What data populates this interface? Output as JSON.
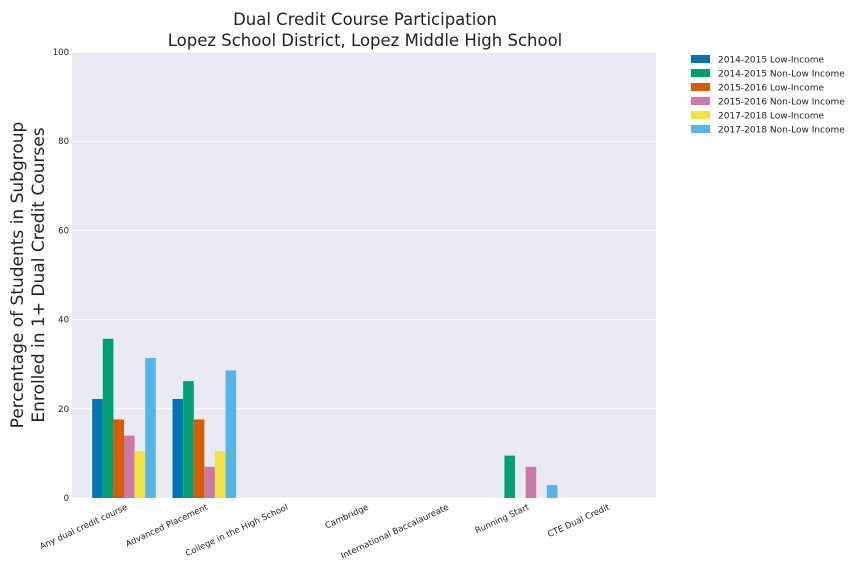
{
  "chart_data": {
    "type": "bar",
    "title": "Dual Credit Course Participation",
    "subtitle": "Lopez School District, Lopez Middle High School",
    "ylabel_lines": [
      "Percentage of Students in Subgroup",
      "Enrolled in 1+ Dual Credit Courses"
    ],
    "xlabel": "",
    "ylim": [
      0,
      100
    ],
    "yticks": [
      0,
      20,
      40,
      60,
      80,
      100
    ],
    "grid": true,
    "legend_position": "outside-top-right",
    "categories": [
      "Any dual credit course",
      "Advanced Placement",
      "College in the High School",
      "Cambridge",
      "International Baccalaureate",
      "Running Start",
      "CTE Dual Credit"
    ],
    "series": [
      {
        "name": "2014-2015 Low-Income",
        "color": "#0072b2",
        "values": [
          22.2,
          22.2,
          0,
          0,
          0,
          0,
          0
        ]
      },
      {
        "name": "2014-2015 Non-Low Income",
        "color": "#009e73",
        "values": [
          35.7,
          26.2,
          0,
          0,
          0,
          9.5,
          0
        ]
      },
      {
        "name": "2015-2016 Low-Income",
        "color": "#d55e00",
        "values": [
          17.6,
          17.6,
          0,
          0,
          0,
          0,
          0
        ]
      },
      {
        "name": "2015-2016 Non-Low Income",
        "color": "#cc79a7",
        "values": [
          14.0,
          7.0,
          0,
          0,
          0,
          7.0,
          0
        ]
      },
      {
        "name": "2017-2018 Low-Income",
        "color": "#f0e442",
        "values": [
          10.5,
          10.5,
          0,
          0,
          0,
          0,
          0
        ]
      },
      {
        "name": "2017-2018 Non-Low Income",
        "color": "#56b4e9",
        "values": [
          31.4,
          28.6,
          0,
          0,
          0,
          2.9,
          0
        ]
      }
    ],
    "colors": {
      "plot_background": "#eaeaf2",
      "grid": "#ffffff"
    }
  }
}
